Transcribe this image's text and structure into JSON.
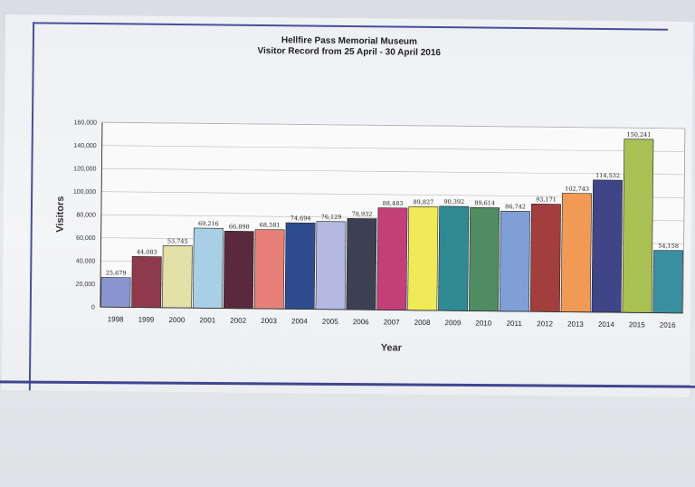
{
  "chart_data": {
    "type": "bar",
    "title": "Hellfire Pass Memorial Museum",
    "subtitle": "Visitor Record from 25 April - 30 April 2016",
    "xlabel": "Year",
    "ylabel": "Visitors",
    "ylim": [
      0,
      160000
    ],
    "yticks": [
      "0",
      "20,000",
      "40,000",
      "60,000",
      "80,000",
      "100,000",
      "120,000",
      "140,000",
      "160,000"
    ],
    "grid": true,
    "categories": [
      "1998",
      "1999",
      "2000",
      "2001",
      "2002",
      "2003",
      "2004",
      "2005",
      "2006",
      "2007",
      "2008",
      "2009",
      "2010",
      "2011",
      "2012",
      "2013",
      "2014",
      "2015",
      "2016"
    ],
    "values": [
      25679,
      44083,
      53745,
      69216,
      66898,
      68581,
      74694,
      76129,
      78932,
      88483,
      89827,
      90392,
      89614,
      86742,
      93171,
      102743,
      114532,
      150241,
      54158
    ],
    "data_labels": [
      "25,679",
      "44,083",
      "53,745",
      "69,216",
      "66,898",
      "68,581",
      "74,694",
      "76,129",
      "78,932",
      "88,483",
      "89,827",
      "90,392",
      "89,614",
      "86,742",
      "93,171",
      "102,743",
      "114,532",
      "150,241",
      "54,158"
    ],
    "colors": [
      "#8a96cf",
      "#8e3a4c",
      "#e3e0a8",
      "#a9cfe6",
      "#5a2a3c",
      "#e8807a",
      "#2f4c8f",
      "#b3b9e0",
      "#3d3f55",
      "#c23f78",
      "#f0ea58",
      "#2f8a93",
      "#4f8c62",
      "#7f9fd6",
      "#a33e3e",
      "#f19a55",
      "#3f4587",
      "#a9c054",
      "#3c8fa0"
    ]
  }
}
